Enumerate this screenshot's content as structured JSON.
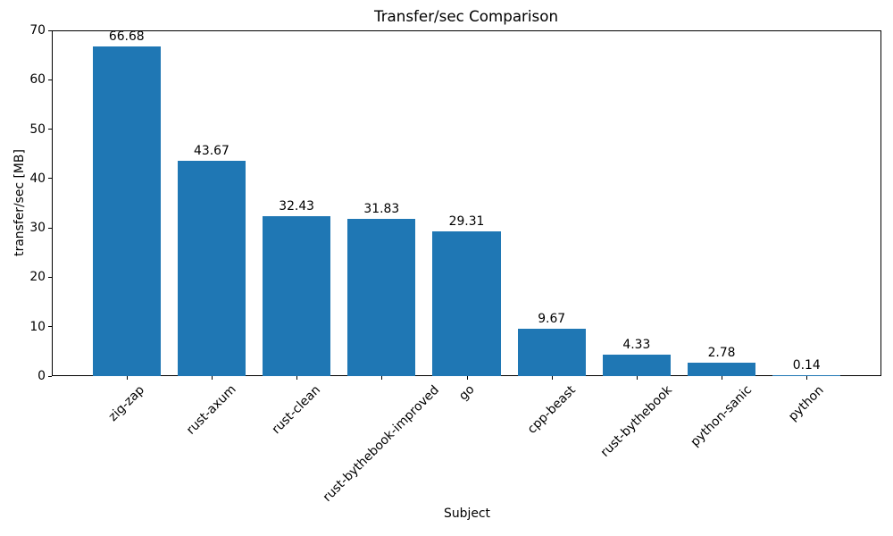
{
  "chart_data": {
    "type": "bar",
    "title": "Transfer/sec Comparison",
    "xlabel": "Subject",
    "ylabel": "transfer/sec [MB]",
    "categories": [
      "zig-zap",
      "rust-axum",
      "rust-clean",
      "rust-bythebook-improved",
      "go",
      "cpp-beast",
      "rust-bythebook",
      "python-sanic",
      "python"
    ],
    "values": [
      66.68,
      43.67,
      32.43,
      31.83,
      29.31,
      9.67,
      4.33,
      2.78,
      0.14
    ],
    "value_labels": [
      "66.68",
      "43.67",
      "32.43",
      "31.83",
      "29.31",
      "9.67",
      "4.33",
      "2.78",
      "0.14"
    ],
    "y_ticks": [
      0,
      10,
      20,
      30,
      40,
      50,
      60,
      70
    ],
    "ylim": [
      0,
      70
    ],
    "bar_color": "#1f77b4",
    "grid": false,
    "legend": null,
    "x_tick_rotation_deg": 45
  }
}
